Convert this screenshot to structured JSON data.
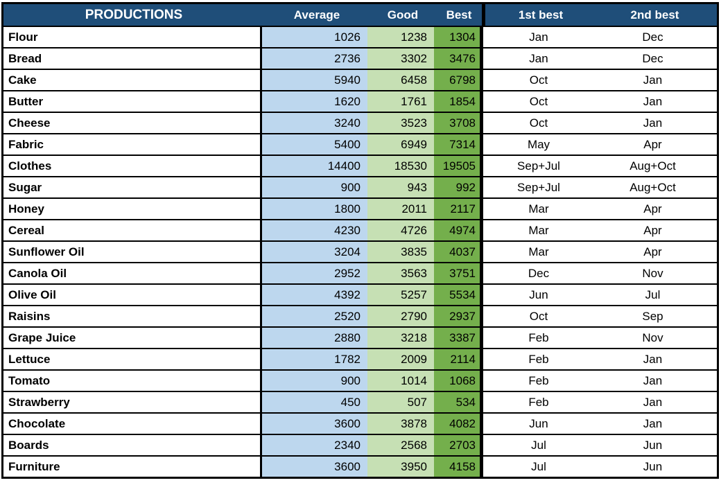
{
  "colors": {
    "header_bg": "#1F4E79",
    "header_text": "#FFFFFF",
    "average_bg": "#BDD7EE",
    "good_bg": "#C6E0B4",
    "best_bg": "#74AF4C",
    "row_bg": "#FFFFFF",
    "text": "#000000",
    "border": "#000000"
  },
  "chart_data": {
    "type": "table",
    "title": "PRODUCTIONS",
    "columns": [
      "PRODUCTIONS",
      "Average",
      "Good",
      "Best",
      "1st best",
      "2nd best"
    ],
    "rows": [
      {
        "product": "Flour",
        "average": "1026",
        "good": "1238",
        "best": "1304",
        "first_best": "Jan",
        "second_best": "Dec"
      },
      {
        "product": "Bread",
        "average": "2736",
        "good": "3302",
        "best": "3476",
        "first_best": "Jan",
        "second_best": "Dec"
      },
      {
        "product": "Cake",
        "average": "5940",
        "good": "6458",
        "best": "6798",
        "first_best": "Oct",
        "second_best": "Jan"
      },
      {
        "product": "Butter",
        "average": "1620",
        "good": "1761",
        "best": "1854",
        "first_best": "Oct",
        "second_best": "Jan"
      },
      {
        "product": "Cheese",
        "average": "3240",
        "good": "3523",
        "best": "3708",
        "first_best": "Oct",
        "second_best": "Jan"
      },
      {
        "product": "Fabric",
        "average": "5400",
        "good": "6949",
        "best": "7314",
        "first_best": "May",
        "second_best": "Apr"
      },
      {
        "product": "Clothes",
        "average": "14400",
        "good": "18530",
        "best": "19505",
        "first_best": "Sep+Jul",
        "second_best": "Aug+Oct"
      },
      {
        "product": "Sugar",
        "average": "900",
        "good": "943",
        "best": "992",
        "first_best": "Sep+Jul",
        "second_best": "Aug+Oct"
      },
      {
        "product": "Honey",
        "average": "1800",
        "good": "2011",
        "best": "2117",
        "first_best": "Mar",
        "second_best": "Apr"
      },
      {
        "product": "Cereal",
        "average": "4230",
        "good": "4726",
        "best": "4974",
        "first_best": "Mar",
        "second_best": "Apr"
      },
      {
        "product": "Sunflower Oil",
        "average": "3204",
        "good": "3835",
        "best": "4037",
        "first_best": "Mar",
        "second_best": "Apr"
      },
      {
        "product": "Canola Oil",
        "average": "2952",
        "good": "3563",
        "best": "3751",
        "first_best": "Dec",
        "second_best": "Nov"
      },
      {
        "product": "Olive Oil",
        "average": "4392",
        "good": "5257",
        "best": "5534",
        "first_best": "Jun",
        "second_best": "Jul"
      },
      {
        "product": "Raisins",
        "average": "2520",
        "good": "2790",
        "best": "2937",
        "first_best": "Oct",
        "second_best": "Sep"
      },
      {
        "product": "Grape Juice",
        "average": "2880",
        "good": "3218",
        "best": "3387",
        "first_best": "Feb",
        "second_best": "Nov"
      },
      {
        "product": "Lettuce",
        "average": "1782",
        "good": "2009",
        "best": "2114",
        "first_best": "Feb",
        "second_best": "Jan"
      },
      {
        "product": "Tomato",
        "average": "900",
        "good": "1014",
        "best": "1068",
        "first_best": "Feb",
        "second_best": "Jan"
      },
      {
        "product": "Strawberry",
        "average": "450",
        "good": "507",
        "best": "534",
        "first_best": "Feb",
        "second_best": "Jan"
      },
      {
        "product": "Chocolate",
        "average": "3600",
        "good": "3878",
        "best": "4082",
        "first_best": "Jun",
        "second_best": "Jan"
      },
      {
        "product": "Boards",
        "average": "2340",
        "good": "2568",
        "best": "2703",
        "first_best": "Jul",
        "second_best": "Jun"
      },
      {
        "product": "Furniture",
        "average": "3600",
        "good": "3950",
        "best": "4158",
        "first_best": "Jul",
        "second_best": "Jun"
      }
    ]
  }
}
